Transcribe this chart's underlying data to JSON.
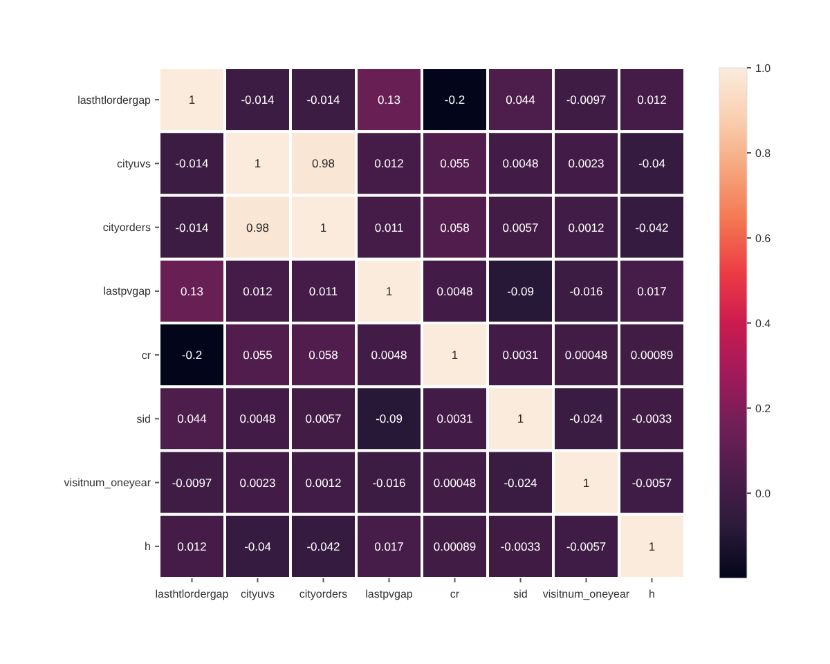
{
  "chart_data": {
    "type": "heatmap",
    "categories": [
      "lasthtlordergap",
      "cityuvs",
      "cityorders",
      "lastpvgap",
      "cr",
      "sid",
      "visitnum_oneyear",
      "h"
    ],
    "y_categories": [
      "lasthtlordergap",
      "cityuvs",
      "cityorders",
      "lastpvgap",
      "cr",
      "sid",
      "visitnum_oneyear",
      "h"
    ],
    "cells": [
      [
        1,
        -0.014,
        -0.014,
        0.13,
        -0.2,
        0.044,
        -0.0097,
        0.012
      ],
      [
        -0.014,
        1,
        0.98,
        0.012,
        0.055,
        0.0048,
        0.0023,
        -0.04
      ],
      [
        -0.014,
        0.98,
        1,
        0.011,
        0.058,
        0.0057,
        0.0012,
        -0.042
      ],
      [
        0.13,
        0.012,
        0.011,
        1,
        0.0048,
        -0.09,
        -0.016,
        0.017
      ],
      [
        -0.2,
        0.055,
        0.058,
        0.0048,
        1,
        0.0031,
        0.00048,
        0.00089
      ],
      [
        0.044,
        0.0048,
        0.0057,
        -0.09,
        0.0031,
        1,
        -0.024,
        -0.0033
      ],
      [
        -0.0097,
        0.0023,
        0.0012,
        -0.016,
        0.00048,
        -0.024,
        1,
        -0.0057
      ],
      [
        0.012,
        -0.04,
        -0.042,
        0.017,
        0.00089,
        -0.0033,
        -0.0057,
        1
      ]
    ],
    "data_labels": true,
    "clim": [
      -0.2,
      1
    ],
    "cticks": [
      {
        "value": 0,
        "label": "0.0"
      },
      {
        "value": 0.2,
        "label": "0.2"
      },
      {
        "value": 0.4,
        "label": "0.4"
      },
      {
        "value": 0.6,
        "label": "0.6"
      },
      {
        "value": 0.8,
        "label": "0.8"
      },
      {
        "value": 1,
        "label": "1.0"
      }
    ]
  }
}
